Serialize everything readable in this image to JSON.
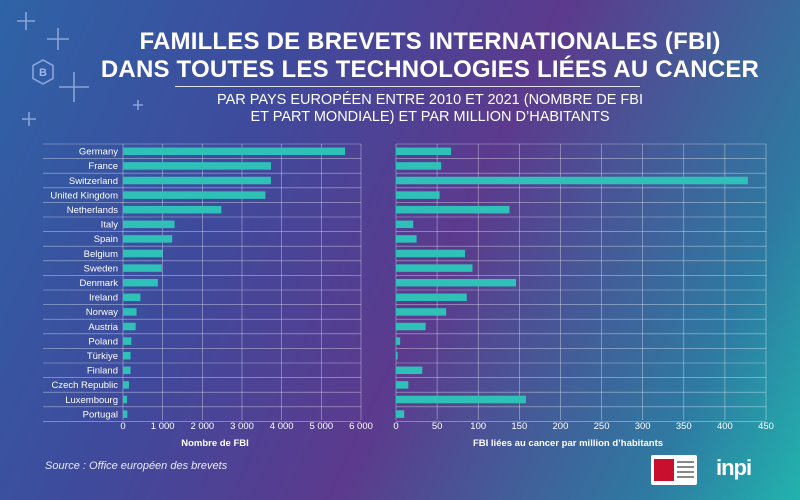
{
  "header": {
    "title_line1": "FAMILLES DE BREVETS INTERNATIONALES (FBI)",
    "title_line2": "DANS TOUTES LES TECHNOLOGIES LIÉES AU CANCER",
    "subtitle_line1": "PAR PAYS EUROPÉEN ENTRE 2010 ET 2021 (NOMBRE DE FBI",
    "subtitle_line2": "ET PART MONDIALE) ET PAR MILLION D’HABITANTS"
  },
  "footer": {
    "source": "Source :  Office européen des brevets",
    "logo_text": "inpi"
  },
  "colors": {
    "bar": "#2fc0b8",
    "grid": "rgba(255,255,255,0.55)",
    "axis_label": "#ffffff"
  },
  "chart_data": [
    {
      "type": "bar",
      "orientation": "horizontal",
      "title": "",
      "xlabel": "Nombre de FBI",
      "ylabel": "",
      "categories": [
        "Germany",
        "France",
        "Switzerland",
        "United Kingdom",
        "Netherlands",
        "Italy",
        "Spain",
        "Belgium",
        "Sweden",
        "Denmark",
        "Ireland",
        "Norway",
        "Austria",
        "Poland",
        "Türkiye",
        "Finland",
        "Czech Republic",
        "Luxembourg",
        "Portugal"
      ],
      "values": [
        5600,
        3730,
        3730,
        3590,
        2480,
        1300,
        1240,
        1000,
        980,
        880,
        440,
        340,
        320,
        210,
        190,
        190,
        150,
        100,
        110
      ],
      "xlim": [
        0,
        6000
      ],
      "xticks": [
        0,
        1000,
        2000,
        3000,
        4000,
        5000,
        6000
      ],
      "xtick_labels": [
        "0",
        "1 000",
        "2 000",
        "3 000",
        "4 000",
        "5 000",
        "6 000"
      ],
      "grid": true
    },
    {
      "type": "bar",
      "orientation": "horizontal",
      "title": "",
      "xlabel": "FBI liées au cancer par million d’habitants",
      "ylabel": "",
      "categories": [
        "Germany",
        "France",
        "Switzerland",
        "United Kingdom",
        "Netherlands",
        "Italy",
        "Spain",
        "Belgium",
        "Sweden",
        "Denmark",
        "Ireland",
        "Norway",
        "Austria",
        "Poland",
        "Türkiye",
        "Finland",
        "Czech Republic",
        "Luxembourg",
        "Portugal"
      ],
      "values": [
        67,
        55,
        428,
        53,
        138,
        21,
        25,
        84,
        93,
        146,
        86,
        61,
        36,
        5,
        2,
        32,
        15,
        158,
        10
      ],
      "xlim": [
        0,
        450
      ],
      "xticks": [
        0,
        50,
        100,
        150,
        200,
        250,
        300,
        350,
        400,
        450
      ],
      "xtick_labels": [
        "0",
        "50",
        "100",
        "150",
        "200",
        "250",
        "300",
        "350",
        "400",
        "450"
      ],
      "grid": true
    }
  ]
}
